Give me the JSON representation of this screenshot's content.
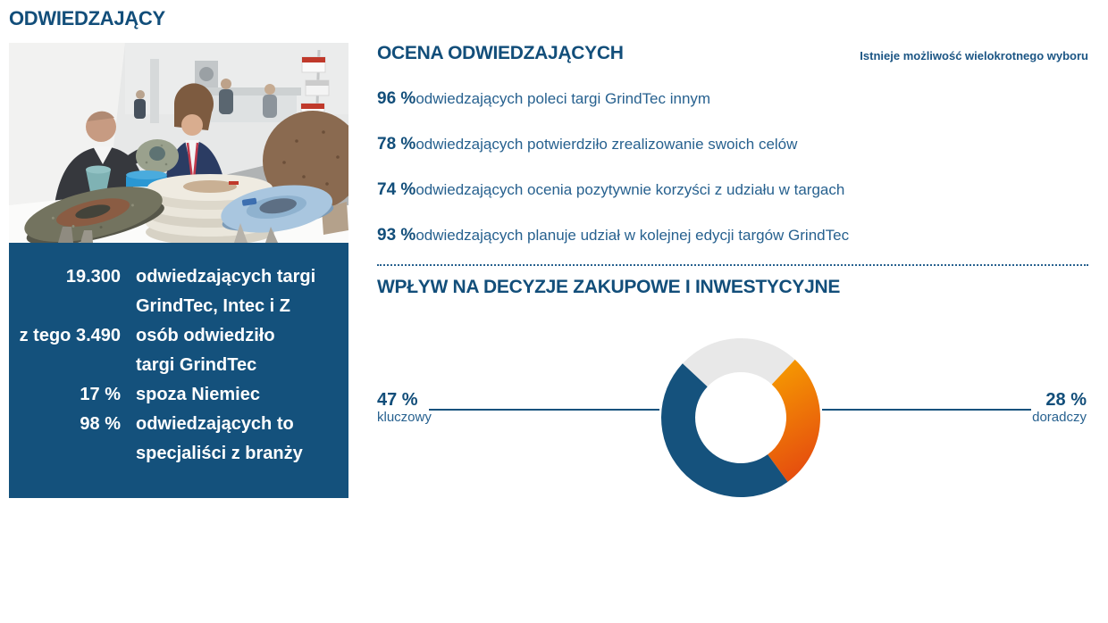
{
  "page_title": "ODWIEDZAJĄCY",
  "infobox": {
    "rows": [
      {
        "num": "19.300",
        "text": "odwiedzających targi\nGrindTec, Intec i Z"
      },
      {
        "num": "z tego 3.490",
        "text": "osób odwiedziło\ntargi GrindTec"
      },
      {
        "num": "17 %",
        "text": "spoza Niemiec"
      },
      {
        "num": "98 %",
        "text": "odwiedzających to\nspecjaliści z branży"
      }
    ]
  },
  "ocena": {
    "title": "OCENA ODWIEDZAJĄCYCH",
    "note": "Istnieje możliwość wielokrotnego wyboru",
    "items": [
      {
        "pct": "96 %",
        "text": "odwiedzających poleci targi GrindTec innym"
      },
      {
        "pct": "78 %",
        "text": "odwiedzających potwierdziło zrealizowanie swoich celów"
      },
      {
        "pct": "74 %",
        "text": "odwiedzających ocenia pozytywnie korzyści z udziału w targach"
      },
      {
        "pct": "93 %",
        "text": "odwiedzających planuje udział w kolejnej edycji targów GrindTec"
      }
    ]
  },
  "wplyw": {
    "title": "WPŁYW NA DECYZJE ZAKUPOWE I INWESTYCYJNE",
    "left_pct": "47 %",
    "left_label": "kluczowy",
    "right_pct": "28 %",
    "right_label": "doradczy"
  },
  "chart_data": {
    "type": "pie",
    "subtype": "donut",
    "title": "WPŁYW NA DECYZJE ZAKUPOWE I INWESTYCYJNE",
    "start_angle_deg": -47,
    "clockwise": true,
    "segments": [
      {
        "label": "",
        "value": 25,
        "color": "#e8e8e8"
      },
      {
        "label": "doradczy",
        "value": 28,
        "color": "#ef7c12",
        "gradient": [
          "#f7a000",
          "#e6500e"
        ]
      },
      {
        "label": "kluczowy",
        "value": 47,
        "color": "#15527d"
      }
    ],
    "outer_radius": 89,
    "inner_radius": 51,
    "legend_position": "sides"
  },
  "colors": {
    "heading": "#124e7a",
    "body_text": "#27618f",
    "infobox_bg": "#14517c",
    "donut_blue": "#15527d",
    "donut_orange": "#ef7c12",
    "donut_gray": "#e8e8e8"
  }
}
